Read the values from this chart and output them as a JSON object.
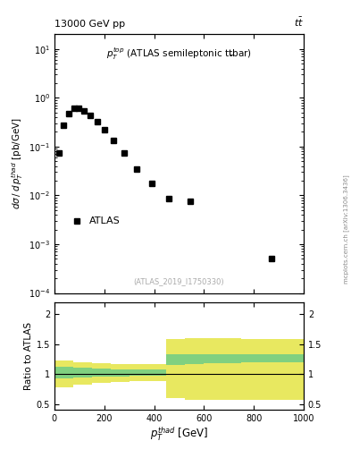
{
  "title_left": "13000 GeV pp",
  "title_right": "tt̅",
  "watermark": "(ATLAS_2019_I1750330)",
  "data_x": [
    17.5,
    37.5,
    57.5,
    77.5,
    97.5,
    120,
    145,
    172.5,
    202.5,
    237.5,
    280,
    330,
    390,
    460,
    545,
    870
  ],
  "data_y": [
    0.075,
    0.27,
    0.48,
    0.6,
    0.62,
    0.55,
    0.43,
    0.32,
    0.22,
    0.135,
    0.075,
    0.035,
    0.018,
    0.0085,
    0.0075,
    0.0005
  ],
  "ylim_main": [
    0.0001,
    20
  ],
  "ylim_ratio": [
    0.4,
    2.2
  ],
  "ratio_x_edges": [
    0,
    75,
    150,
    225,
    300,
    375,
    450,
    525,
    600,
    750,
    1000
  ],
  "green_lo": [
    0.92,
    0.94,
    0.95,
    0.96,
    0.97,
    0.97,
    1.15,
    1.17,
    1.18,
    1.2
  ],
  "green_hi": [
    1.12,
    1.1,
    1.09,
    1.08,
    1.07,
    1.07,
    1.33,
    1.33,
    1.33,
    1.33
  ],
  "yellow_lo": [
    0.78,
    0.82,
    0.85,
    0.87,
    0.88,
    0.88,
    0.6,
    0.57,
    0.57,
    0.57
  ],
  "yellow_hi": [
    1.22,
    1.2,
    1.18,
    1.17,
    1.16,
    1.16,
    1.58,
    1.6,
    1.6,
    1.58
  ],
  "green_color": "#80d080",
  "yellow_color": "#e8e860",
  "side_label": "mcplots.cern.ch [arXiv:1306.3436]"
}
